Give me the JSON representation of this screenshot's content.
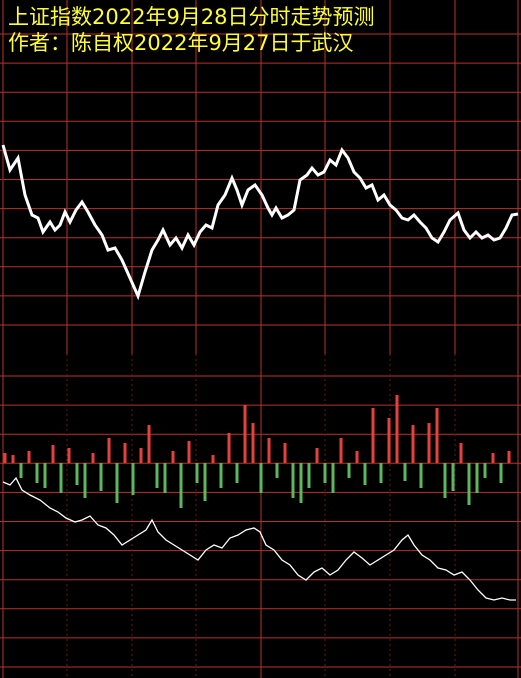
{
  "chart_data": [
    {
      "type": "line",
      "title": "上证指数2022年9月28日分时走势预测",
      "subtitle": "作者：陈自权2022年9月27日于武汉",
      "color": "#ffffff",
      "xlim": [
        0,
        521
      ],
      "ylim": [
        0,
        350
      ],
      "x": [
        3,
        10,
        18,
        25,
        32,
        38,
        43,
        50,
        55,
        60,
        65,
        70,
        76,
        82,
        88,
        95,
        102,
        108,
        115,
        122,
        130,
        138,
        145,
        152,
        158,
        163,
        170,
        176,
        182,
        188,
        194,
        200,
        206,
        212,
        218,
        225,
        232,
        237,
        242,
        248,
        255,
        262,
        268,
        272,
        276,
        282,
        288,
        294,
        300,
        307,
        312,
        318,
        324,
        330,
        336,
        342,
        348,
        354,
        360,
        366,
        372,
        378,
        384,
        390,
        396,
        402,
        408,
        414,
        420,
        426,
        432,
        438,
        444,
        450,
        458,
        464,
        470,
        476,
        482,
        488,
        494,
        500,
        506,
        512,
        518
      ],
      "values": [
        205,
        180,
        192,
        155,
        135,
        132,
        118,
        128,
        120,
        125,
        138,
        128,
        140,
        148,
        138,
        125,
        115,
        100,
        102,
        90,
        72,
        54,
        78,
        100,
        110,
        120,
        105,
        112,
        102,
        115,
        105,
        118,
        125,
        122,
        145,
        155,
        172,
        160,
        145,
        160,
        165,
        155,
        142,
        135,
        142,
        132,
        135,
        140,
        170,
        175,
        182,
        175,
        178,
        190,
        185,
        200,
        192,
        178,
        172,
        162,
        165,
        150,
        155,
        145,
        140,
        132,
        130,
        135,
        128,
        122,
        112,
        108,
        118,
        130,
        137,
        120,
        112,
        118,
        112,
        115,
        110,
        112,
        122,
        135,
        136
      ]
    },
    {
      "type": "bar",
      "up_color": "#e8413c",
      "down_color": "#5cb85c",
      "xlim": [
        0,
        521
      ],
      "ylim": [
        -100,
        100
      ],
      "x": [
        5,
        13,
        21,
        29,
        37,
        45,
        53,
        61,
        69,
        77,
        85,
        93,
        101,
        109,
        117,
        125,
        133,
        141,
        149,
        157,
        165,
        173,
        181,
        189,
        197,
        205,
        213,
        221,
        229,
        237,
        245,
        253,
        261,
        269,
        277,
        285,
        293,
        301,
        309,
        317,
        325,
        333,
        341,
        349,
        357,
        365,
        373,
        381,
        389,
        397,
        405,
        413,
        421,
        429,
        437,
        445,
        453,
        461,
        469,
        477,
        485,
        493,
        501,
        509
      ],
      "values": [
        10,
        8,
        -15,
        12,
        -20,
        -25,
        18,
        -30,
        15,
        -22,
        -35,
        10,
        -28,
        25,
        -40,
        20,
        -32,
        15,
        38,
        -25,
        -30,
        12,
        -45,
        22,
        -20,
        -38,
        8,
        -25,
        30,
        -20,
        58,
        40,
        -30,
        25,
        -15,
        20,
        -35,
        -40,
        -25,
        15,
        -20,
        -30,
        25,
        -15,
        12,
        -22,
        55,
        -20,
        45,
        68,
        -18,
        38,
        -25,
        40,
        55,
        -35,
        -28,
        20,
        -42,
        -30,
        -15,
        10,
        -20,
        12
      ]
    },
    {
      "type": "line",
      "color": "#ffffff",
      "xlim": [
        0,
        521
      ],
      "ylim": [
        0,
        300
      ],
      "x": [
        3,
        10,
        16,
        22,
        30,
        40,
        50,
        58,
        66,
        75,
        82,
        90,
        98,
        106,
        114,
        122,
        130,
        138,
        146,
        152,
        158,
        166,
        174,
        182,
        190,
        198,
        206,
        214,
        222,
        230,
        238,
        246,
        254,
        260,
        266,
        274,
        282,
        290,
        298,
        306,
        314,
        322,
        330,
        338,
        346,
        354,
        362,
        370,
        378,
        386,
        394,
        402,
        408,
        414,
        422,
        430,
        438,
        446,
        454,
        462,
        470,
        478,
        486,
        494,
        502,
        510,
        516
      ],
      "values": [
        196,
        193,
        200,
        188,
        183,
        178,
        170,
        166,
        160,
        156,
        158,
        162,
        153,
        150,
        143,
        133,
        138,
        143,
        148,
        158,
        146,
        138,
        133,
        128,
        123,
        118,
        128,
        133,
        130,
        140,
        143,
        148,
        150,
        146,
        133,
        128,
        118,
        113,
        103,
        98,
        106,
        110,
        103,
        108,
        118,
        126,
        120,
        113,
        118,
        123,
        128,
        138,
        143,
        133,
        123,
        118,
        110,
        108,
        103,
        106,
        98,
        88,
        80,
        78,
        80,
        78,
        78
      ]
    }
  ]
}
